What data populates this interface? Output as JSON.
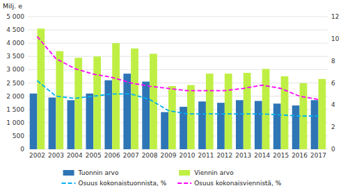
{
  "chart_data": {
    "type": "bar",
    "ylabel": "Milj. e",
    "categories": [
      "2002",
      "2003",
      "2004",
      "2005",
      "2006",
      "2007",
      "2008",
      "2009",
      "2010",
      "2011",
      "2012",
      "2013",
      "2014",
      "2015",
      "2016",
      "2017"
    ],
    "series": [
      {
        "name": "Tuonnin arvo",
        "type": "bar",
        "color": "#2E75B6",
        "values": [
          2100,
          1950,
          1850,
          2100,
          2600,
          2850,
          2550,
          1400,
          1600,
          1800,
          1750,
          1850,
          1820,
          1720,
          1650,
          1850
        ]
      },
      {
        "name": "Viennin arvo",
        "type": "bar",
        "color": "#BFEF45",
        "values": [
          4550,
          3700,
          3450,
          3500,
          4000,
          3800,
          3600,
          2380,
          2420,
          2850,
          2850,
          2880,
          3030,
          2750,
          2490,
          2650
        ]
      },
      {
        "name": "Osuus kokonaistuonnista, %",
        "type": "line",
        "line_style": "dashed",
        "color": "#00B0F0",
        "axis": "y2",
        "values": [
          6.2,
          4.8,
          4.6,
          4.8,
          5.0,
          5.0,
          4.5,
          3.5,
          3.2,
          3.2,
          3.2,
          3.2,
          3.2,
          3.1,
          3.0,
          3.0
        ]
      },
      {
        "name": "Osuus kokonaisviennistä, %",
        "type": "line",
        "line_style": "dashed",
        "color": "#FF00FF",
        "axis": "y2",
        "values": [
          10.2,
          8.2,
          7.3,
          6.8,
          6.5,
          6.0,
          5.7,
          5.5,
          5.3,
          5.3,
          5.3,
          5.5,
          5.8,
          5.5,
          4.8,
          4.5
        ]
      }
    ],
    "ylim": [
      0,
      5000
    ],
    "yticks": [
      0,
      500,
      {
        "value": 1000,
        "label": "1 000"
      },
      {
        "value": 1500,
        "label": "1 500"
      },
      {
        "value": 2000,
        "label": "2 000"
      },
      {
        "value": 2500,
        "label": "2 500"
      },
      {
        "value": 3000,
        "label": "3 000"
      },
      {
        "value": 3500,
        "label": "3 500"
      },
      {
        "value": 4000,
        "label": "4 000"
      },
      {
        "value": 4500,
        "label": "4 500"
      },
      {
        "value": 5000,
        "label": "5 000"
      }
    ],
    "y2lim": [
      0,
      12
    ],
    "y2ticks": [
      0,
      2,
      4,
      6,
      8,
      10,
      12
    ],
    "grid": true,
    "legend": "bottom"
  }
}
